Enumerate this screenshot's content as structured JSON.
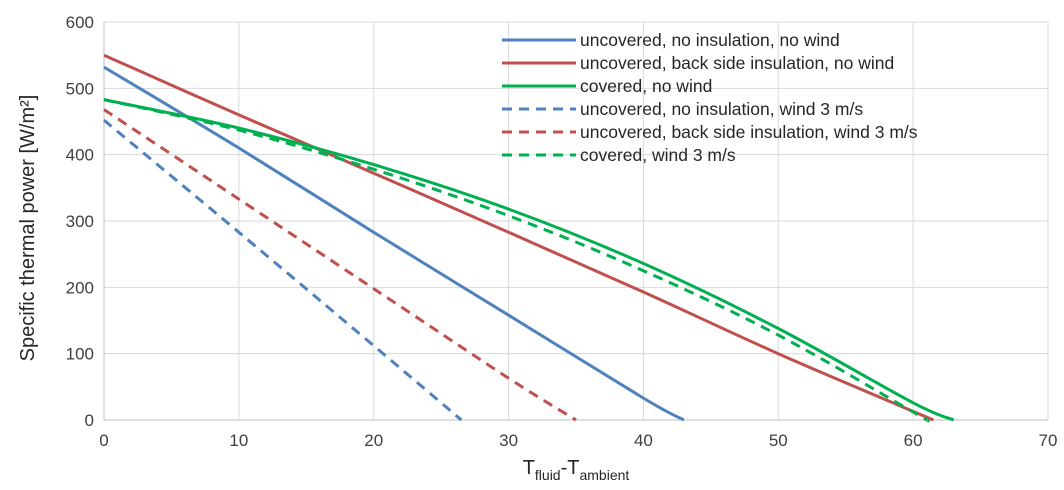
{
  "chart_data": {
    "type": "line",
    "title": "",
    "xlabel": {
      "base": "T",
      "sub1": "fluid",
      "sep": "-T",
      "sub2": "ambient"
    },
    "ylabel": "Specific thermal power [W/m²]",
    "xlim": [
      0,
      70
    ],
    "ylim": [
      0,
      600
    ],
    "xticks": [
      0,
      10,
      20,
      30,
      40,
      50,
      60,
      70
    ],
    "yticks": [
      0,
      100,
      200,
      300,
      400,
      500,
      600
    ],
    "grid": true,
    "legend_position": "top-right",
    "series": [
      {
        "name": "uncovered, no insulation, no wind",
        "color": "#4f81bd",
        "dashed": false,
        "x": [
          0,
          10,
          20,
          30,
          40,
          43
        ],
        "y": [
          532,
          410,
          283,
          158,
          33,
          0
        ]
      },
      {
        "name": "uncovered, back side insulation, no wind",
        "color": "#c0504d",
        "dashed": false,
        "x": [
          0,
          10,
          20,
          30,
          40,
          50,
          61.5
        ],
        "y": [
          550,
          460,
          372,
          283,
          193,
          100,
          0
        ]
      },
      {
        "name": "covered, no wind",
        "color": "#00b050",
        "dashed": false,
        "x": [
          0,
          10,
          20,
          30,
          40,
          50,
          60,
          63
        ],
        "y": [
          483,
          440,
          385,
          318,
          236,
          138,
          26,
          0
        ]
      },
      {
        "name": "uncovered, no insulation, wind 3 m/s",
        "color": "#4f81bd",
        "dashed": true,
        "x": [
          0,
          10,
          20,
          26.5
        ],
        "y": [
          452,
          283,
          112,
          0
        ]
      },
      {
        "name": "uncovered, back side insulation, wind 3 m/s",
        "color": "#c0504d",
        "dashed": true,
        "x": [
          0,
          10,
          20,
          30,
          35
        ],
        "y": [
          468,
          333,
          198,
          63,
          0
        ]
      },
      {
        "name": "covered, wind 3 m/s",
        "color": "#00b050",
        "dashed": true,
        "x": [
          0,
          10,
          20,
          30,
          40,
          50,
          60,
          61
        ],
        "y": [
          483,
          437,
          378,
          308,
          225,
          128,
          12,
          0
        ]
      }
    ]
  }
}
